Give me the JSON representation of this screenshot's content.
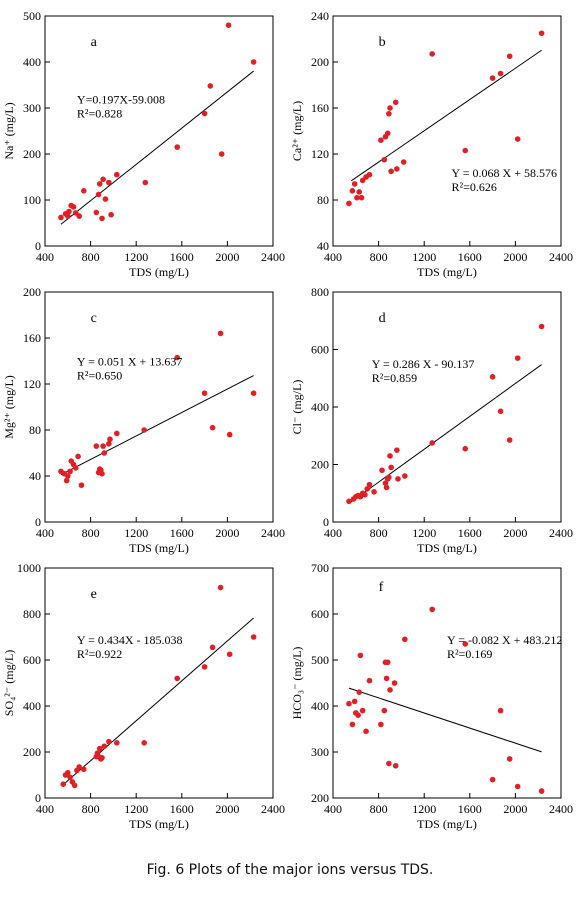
{
  "caption": "Fig. 6 Plots of the major ions versus TDS.",
  "chart_data": [
    {
      "type": "scatter",
      "panel": "a",
      "xlabel": "TDS (mg/L)",
      "ylabel": "Na⁺ (mg/L)",
      "xlim": [
        400,
        2400
      ],
      "ylim": [
        0,
        500
      ],
      "xticks": [
        400,
        800,
        1200,
        1600,
        2000,
        2400
      ],
      "yticks": [
        0,
        100,
        200,
        300,
        400,
        500
      ],
      "equation": "Y=0.197X-59.008",
      "r2": "R²=0.828",
      "fit": {
        "slope": 0.197,
        "intercept": -59.008,
        "x_range": [
          540,
          2230
        ]
      },
      "points": [
        [
          540,
          62
        ],
        [
          580,
          70
        ],
        [
          600,
          65
        ],
        [
          610,
          75
        ],
        [
          630,
          88
        ],
        [
          650,
          85
        ],
        [
          670,
          72
        ],
        [
          700,
          65
        ],
        [
          740,
          120
        ],
        [
          850,
          73
        ],
        [
          870,
          112
        ],
        [
          880,
          135
        ],
        [
          900,
          60
        ],
        [
          910,
          145
        ],
        [
          930,
          102
        ],
        [
          960,
          138
        ],
        [
          980,
          68
        ],
        [
          1030,
          155
        ],
        [
          1280,
          138
        ],
        [
          1560,
          215
        ],
        [
          1800,
          288
        ],
        [
          1850,
          348
        ],
        [
          1950,
          200
        ],
        [
          2010,
          480
        ],
        [
          2230,
          400
        ]
      ]
    },
    {
      "type": "scatter",
      "panel": "b",
      "xlabel": "TDS (mg/L)",
      "ylabel": "Ca²⁺ (mg/L)",
      "xlim": [
        400,
        2400
      ],
      "ylim": [
        40,
        240
      ],
      "xticks": [
        400,
        800,
        1200,
        1600,
        2000,
        2400
      ],
      "yticks": [
        40,
        80,
        120,
        160,
        200,
        240
      ],
      "equation": "Y = 0.068 X + 58.576",
      "r2": "R²=0.626",
      "fit": {
        "slope": 0.068,
        "intercept": 58.576,
        "x_range": [
          560,
          2230
        ]
      },
      "points": [
        [
          540,
          77
        ],
        [
          570,
          88
        ],
        [
          590,
          94
        ],
        [
          610,
          82
        ],
        [
          630,
          87
        ],
        [
          650,
          82
        ],
        [
          660,
          97
        ],
        [
          690,
          100
        ],
        [
          720,
          102
        ],
        [
          820,
          132
        ],
        [
          850,
          115
        ],
        [
          860,
          135
        ],
        [
          880,
          138
        ],
        [
          890,
          155
        ],
        [
          900,
          160
        ],
        [
          910,
          105
        ],
        [
          950,
          165
        ],
        [
          960,
          107
        ],
        [
          1020,
          113
        ],
        [
          1270,
          207
        ],
        [
          1560,
          123
        ],
        [
          1800,
          186
        ],
        [
          1870,
          190
        ],
        [
          1950,
          205
        ],
        [
          2020,
          133
        ],
        [
          2230,
          225
        ]
      ]
    },
    {
      "type": "scatter",
      "panel": "c",
      "xlabel": "TDS (mg/L)",
      "ylabel": "Mg²⁺ (mg/L)",
      "xlim": [
        400,
        2400
      ],
      "ylim": [
        0,
        200
      ],
      "xticks": [
        400,
        800,
        1200,
        1600,
        2000,
        2400
      ],
      "yticks": [
        0,
        40,
        80,
        120,
        160,
        200
      ],
      "equation": "Y = 0.051 X + 13.637",
      "r2": "R²=0.650",
      "fit": {
        "slope": 0.051,
        "intercept": 13.637,
        "x_range": [
          540,
          2230
        ]
      },
      "points": [
        [
          540,
          44
        ],
        [
          570,
          42
        ],
        [
          590,
          36
        ],
        [
          600,
          40
        ],
        [
          620,
          44
        ],
        [
          630,
          53
        ],
        [
          650,
          50
        ],
        [
          670,
          47
        ],
        [
          690,
          57
        ],
        [
          720,
          32
        ],
        [
          850,
          66
        ],
        [
          870,
          43
        ],
        [
          880,
          46
        ],
        [
          890,
          45
        ],
        [
          900,
          42
        ],
        [
          910,
          66
        ],
        [
          920,
          60
        ],
        [
          960,
          68
        ],
        [
          970,
          72
        ],
        [
          1030,
          77
        ],
        [
          1270,
          80
        ],
        [
          1560,
          143
        ],
        [
          1800,
          112
        ],
        [
          1870,
          82
        ],
        [
          1940,
          164
        ],
        [
          2020,
          76
        ],
        [
          2230,
          112
        ]
      ]
    },
    {
      "type": "scatter",
      "panel": "d",
      "xlabel": "TDS (mg/L)",
      "ylabel": "Cl⁻ (mg/L)",
      "xlim": [
        400,
        2400
      ],
      "ylim": [
        0,
        800
      ],
      "xticks": [
        400,
        800,
        1200,
        1600,
        2000,
        2400
      ],
      "yticks": [
        0,
        200,
        400,
        600,
        800
      ],
      "equation": "Y = 0.286 X - 90.137",
      "r2": "R²=0.859",
      "fit": {
        "slope": 0.286,
        "intercept": -90.137,
        "x_range": [
          540,
          2230
        ]
      },
      "points": [
        [
          540,
          72
        ],
        [
          580,
          80
        ],
        [
          600,
          88
        ],
        [
          620,
          92
        ],
        [
          640,
          88
        ],
        [
          660,
          100
        ],
        [
          680,
          95
        ],
        [
          700,
          115
        ],
        [
          720,
          130
        ],
        [
          760,
          105
        ],
        [
          830,
          180
        ],
        [
          860,
          135
        ],
        [
          870,
          120
        ],
        [
          880,
          150
        ],
        [
          890,
          155
        ],
        [
          900,
          230
        ],
        [
          910,
          190
        ],
        [
          960,
          250
        ],
        [
          970,
          150
        ],
        [
          1030,
          160
        ],
        [
          1270,
          275
        ],
        [
          1560,
          255
        ],
        [
          1800,
          505
        ],
        [
          1870,
          385
        ],
        [
          1950,
          285
        ],
        [
          2020,
          570
        ],
        [
          2230,
          680
        ]
      ]
    },
    {
      "type": "scatter",
      "panel": "e",
      "xlabel": "TDS (mg/L)",
      "ylabel": "SO₄²⁻ (mg/L)",
      "xlim": [
        400,
        2400
      ],
      "ylim": [
        0,
        1000
      ],
      "xticks": [
        400,
        800,
        1200,
        1600,
        2000,
        2400
      ],
      "yticks": [
        0,
        200,
        400,
        600,
        800,
        1000
      ],
      "equation": "Y = 0.434X - 185.038",
      "r2": "R²=0.922",
      "fit": {
        "slope": 0.434,
        "intercept": -185.038,
        "x_range": [
          560,
          2230
        ]
      },
      "points": [
        [
          560,
          60
        ],
        [
          580,
          100
        ],
        [
          600,
          110
        ],
        [
          620,
          90
        ],
        [
          640,
          70
        ],
        [
          660,
          55
        ],
        [
          680,
          120
        ],
        [
          700,
          135
        ],
        [
          740,
          125
        ],
        [
          850,
          180
        ],
        [
          860,
          195
        ],
        [
          870,
          180
        ],
        [
          880,
          215
        ],
        [
          890,
          170
        ],
        [
          900,
          175
        ],
        [
          920,
          225
        ],
        [
          960,
          245
        ],
        [
          1030,
          240
        ],
        [
          1270,
          240
        ],
        [
          1560,
          520
        ],
        [
          1800,
          570
        ],
        [
          1870,
          655
        ],
        [
          1940,
          915
        ],
        [
          2020,
          625
        ],
        [
          2230,
          700
        ]
      ]
    },
    {
      "type": "scatter",
      "panel": "f",
      "xlabel": "TDS (mg/L)",
      "ylabel": "HCO₃⁻ (mg/L)",
      "xlim": [
        400,
        2400
      ],
      "ylim": [
        200,
        700
      ],
      "xticks": [
        400,
        800,
        1200,
        1600,
        2000,
        2400
      ],
      "yticks": [
        200,
        300,
        400,
        500,
        600,
        700
      ],
      "equation": "Y = -0.082 X + 483.212",
      "r2": "R²=0.169",
      "fit": {
        "slope": -0.082,
        "intercept": 483.212,
        "x_range": [
          540,
          2230
        ]
      },
      "points": [
        [
          540,
          405
        ],
        [
          570,
          360
        ],
        [
          590,
          410
        ],
        [
          600,
          385
        ],
        [
          620,
          380
        ],
        [
          630,
          430
        ],
        [
          640,
          510
        ],
        [
          660,
          390
        ],
        [
          690,
          345
        ],
        [
          720,
          455
        ],
        [
          820,
          360
        ],
        [
          850,
          390
        ],
        [
          860,
          495
        ],
        [
          870,
          460
        ],
        [
          880,
          495
        ],
        [
          890,
          275
        ],
        [
          900,
          435
        ],
        [
          940,
          450
        ],
        [
          950,
          270
        ],
        [
          1030,
          545
        ],
        [
          1270,
          610
        ],
        [
          1560,
          535
        ],
        [
          1800,
          240
        ],
        [
          1870,
          390
        ],
        [
          1950,
          285
        ],
        [
          2020,
          225
        ],
        [
          2230,
          215
        ]
      ]
    }
  ]
}
